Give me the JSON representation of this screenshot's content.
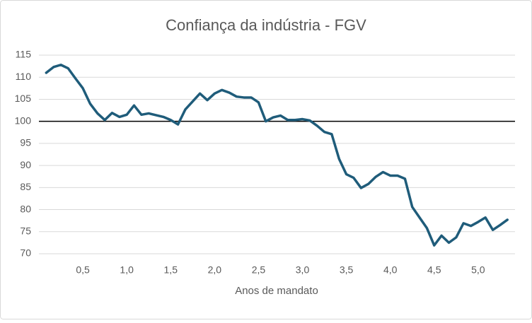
{
  "chart_data": {
    "type": "line",
    "title": "Confiança da indústria - FGV",
    "x_label": "Anos de mandato",
    "x": [
      0.083,
      0.167,
      0.25,
      0.333,
      0.417,
      0.5,
      0.583,
      0.667,
      0.75,
      0.833,
      0.917,
      1.0,
      1.083,
      1.167,
      1.25,
      1.333,
      1.417,
      1.5,
      1.583,
      1.667,
      1.75,
      1.833,
      1.917,
      2.0,
      2.083,
      2.167,
      2.25,
      2.333,
      2.417,
      2.5,
      2.583,
      2.667,
      2.75,
      2.833,
      2.917,
      3.0,
      3.083,
      3.167,
      3.25,
      3.333,
      3.417,
      3.5,
      3.583,
      3.667,
      3.75,
      3.833,
      3.917,
      4.0,
      4.083,
      4.167,
      4.25,
      4.333,
      4.417,
      4.5,
      4.583,
      4.667,
      4.75,
      4.833,
      4.917,
      5.0,
      5.083,
      5.167,
      5.25,
      5.333
    ],
    "series": [
      {
        "name": "Confiança da indústria",
        "color": "#1f5c7a",
        "values": [
          111,
          112.3,
          112.8,
          112,
          109.7,
          107.5,
          104,
          101.8,
          100.3,
          101.9,
          101,
          101.5,
          103.6,
          101.5,
          101.8,
          101.4,
          101,
          100.3,
          99.3,
          102.7,
          104.5,
          106.3,
          104.8,
          106.3,
          107.1,
          106.5,
          105.6,
          105.4,
          105.4,
          104.3,
          100,
          100.9,
          101.3,
          100.3,
          100.3,
          100.5,
          100.2,
          99,
          97.6,
          97.1,
          91.5,
          88,
          87.2,
          84.9,
          85.8,
          87.4,
          88.5,
          87.7,
          87.7,
          87,
          80.6,
          78.2,
          75.8,
          71.9,
          74.1,
          72.5,
          73.7,
          76.9,
          76.3,
          77.2,
          78.2,
          75.4,
          76.5,
          77.7
        ]
      }
    ],
    "xlim": [
      0,
      5.42
    ],
    "xticks": [
      {
        "value": 0.5,
        "label": "0,5"
      },
      {
        "value": 1.0,
        "label": "1,0"
      },
      {
        "value": 1.5,
        "label": "1,5"
      },
      {
        "value": 2.0,
        "label": "2,0"
      },
      {
        "value": 2.5,
        "label": "2,5"
      },
      {
        "value": 3.0,
        "label": "3,0"
      },
      {
        "value": 3.5,
        "label": "3,5"
      },
      {
        "value": 4.0,
        "label": "4,0"
      },
      {
        "value": 4.5,
        "label": "4,5"
      },
      {
        "value": 5.0,
        "label": "5,0"
      }
    ],
    "ylim": [
      70,
      115
    ],
    "yticks": [
      70,
      75,
      80,
      85,
      90,
      95,
      100,
      105,
      110,
      115
    ],
    "grid": true,
    "reference_line": 100,
    "reference_color": "#000000"
  }
}
